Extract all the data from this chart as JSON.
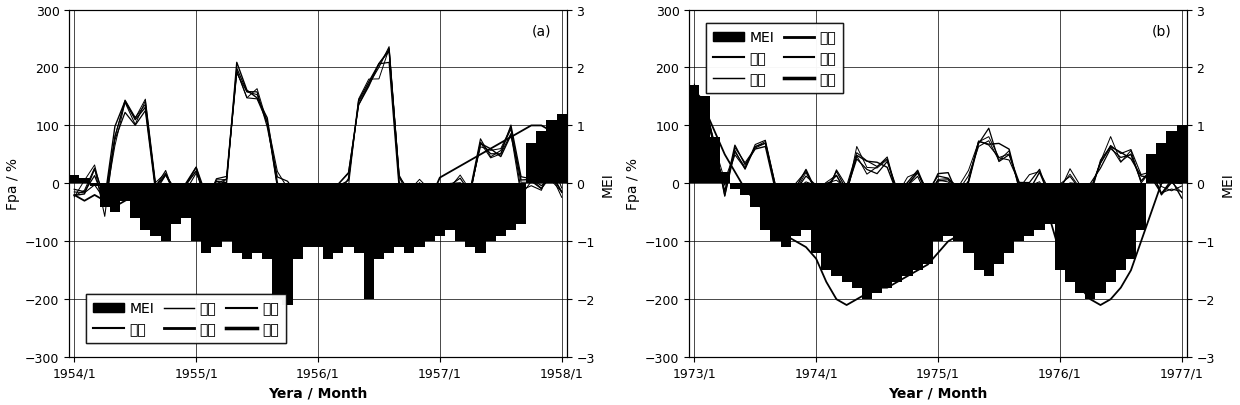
{
  "panel_a": {
    "label": "(a)",
    "xlabel": "Yera / Month",
    "xticks": [
      1,
      13,
      25,
      37,
      49
    ],
    "xticklabels": [
      "1954/1",
      "1955/1",
      "1956/1",
      "1957/1",
      "1958/1"
    ],
    "n_months": 49,
    "legend_loc": "lower",
    "legend_ncol": 3,
    "legend_labels": [
      "MEI",
      "右江",
      "天一",
      "龙滩",
      "光照",
      "长洲"
    ]
  },
  "panel_b": {
    "label": "(b)",
    "xlabel": "Year / Month",
    "xticks": [
      1,
      13,
      25,
      37,
      49
    ],
    "xticklabels": [
      "1973/1",
      "1974/1",
      "1975/1",
      "1976/1",
      "1977/1"
    ],
    "n_months": 49,
    "legend_loc": "upper",
    "legend_ncol": 2,
    "legend_labels": [
      "MEI",
      "天一",
      "光照",
      "右江",
      "龙滩",
      "长洲"
    ]
  },
  "ylim_left": [
    -300,
    300
  ],
  "ylim_right": [
    -3.0,
    3.0
  ],
  "yticks_left": [
    -300,
    -200,
    -100,
    0,
    100,
    200,
    300
  ],
  "yticks_right": [
    -3.0,
    -2.0,
    -1.0,
    0.0,
    1.0,
    2.0,
    3.0
  ],
  "ylabel_left": "Fpa / %",
  "ylabel_right": "MEI",
  "bar_color": "#000000",
  "line_color": "#000000"
}
